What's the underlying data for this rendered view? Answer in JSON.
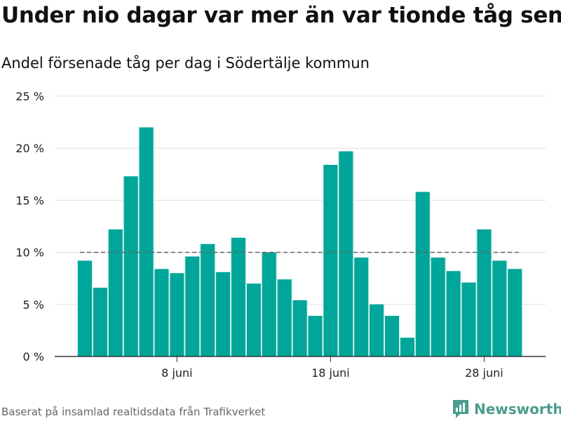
{
  "title": "Under nio dagar var mer än var tionde tåg sent",
  "subtitle": "Andel försenade tåg per dag i Södertälje kommun",
  "source": "Baserat på insamlad realtidsdata från Trafikverket",
  "brand": {
    "name": "Newsworthy",
    "icon": "newsworthy-logo-icon",
    "color": "#4a9d8e"
  },
  "colors": {
    "bar": "#00a699",
    "bar_glow": "#d9f4f1",
    "grid": "#dddddd",
    "reference": "#666666",
    "axis": "#333333"
  },
  "chart_data": {
    "type": "bar",
    "title": "Under nio dagar var mer än var tionde tåg sent",
    "subtitle": "Andel försenade tåg per dag i Södertälje kommun",
    "xlabel": "",
    "ylabel": "",
    "ylim": [
      0,
      25
    ],
    "unit": "%",
    "grid": true,
    "yticks": [
      0,
      5,
      10,
      15,
      20,
      25
    ],
    "ytick_labels": [
      "0 %",
      "5 %",
      "10 %",
      "15 %",
      "20 %",
      "25 %"
    ],
    "x_start": "2 juni",
    "xticks": [
      {
        "day": 8,
        "label": "8 juni"
      },
      {
        "day": 18,
        "label": "18 juni"
      },
      {
        "day": 28,
        "label": "28 juni"
      }
    ],
    "days": [
      2,
      3,
      4,
      5,
      6,
      7,
      8,
      9,
      10,
      11,
      12,
      13,
      14,
      15,
      16,
      17,
      18,
      19,
      20,
      21,
      22,
      23,
      24,
      25,
      26,
      27,
      28,
      29,
      30
    ],
    "values": [
      9.2,
      6.6,
      12.2,
      17.3,
      22.0,
      8.4,
      8.0,
      9.6,
      10.8,
      8.1,
      11.4,
      7.0,
      10.0,
      7.4,
      5.4,
      3.9,
      18.4,
      19.7,
      9.5,
      5.0,
      3.9,
      1.8,
      15.8,
      9.5,
      8.2,
      7.1,
      12.2,
      9.2,
      8.4
    ],
    "reference_line": 10
  }
}
